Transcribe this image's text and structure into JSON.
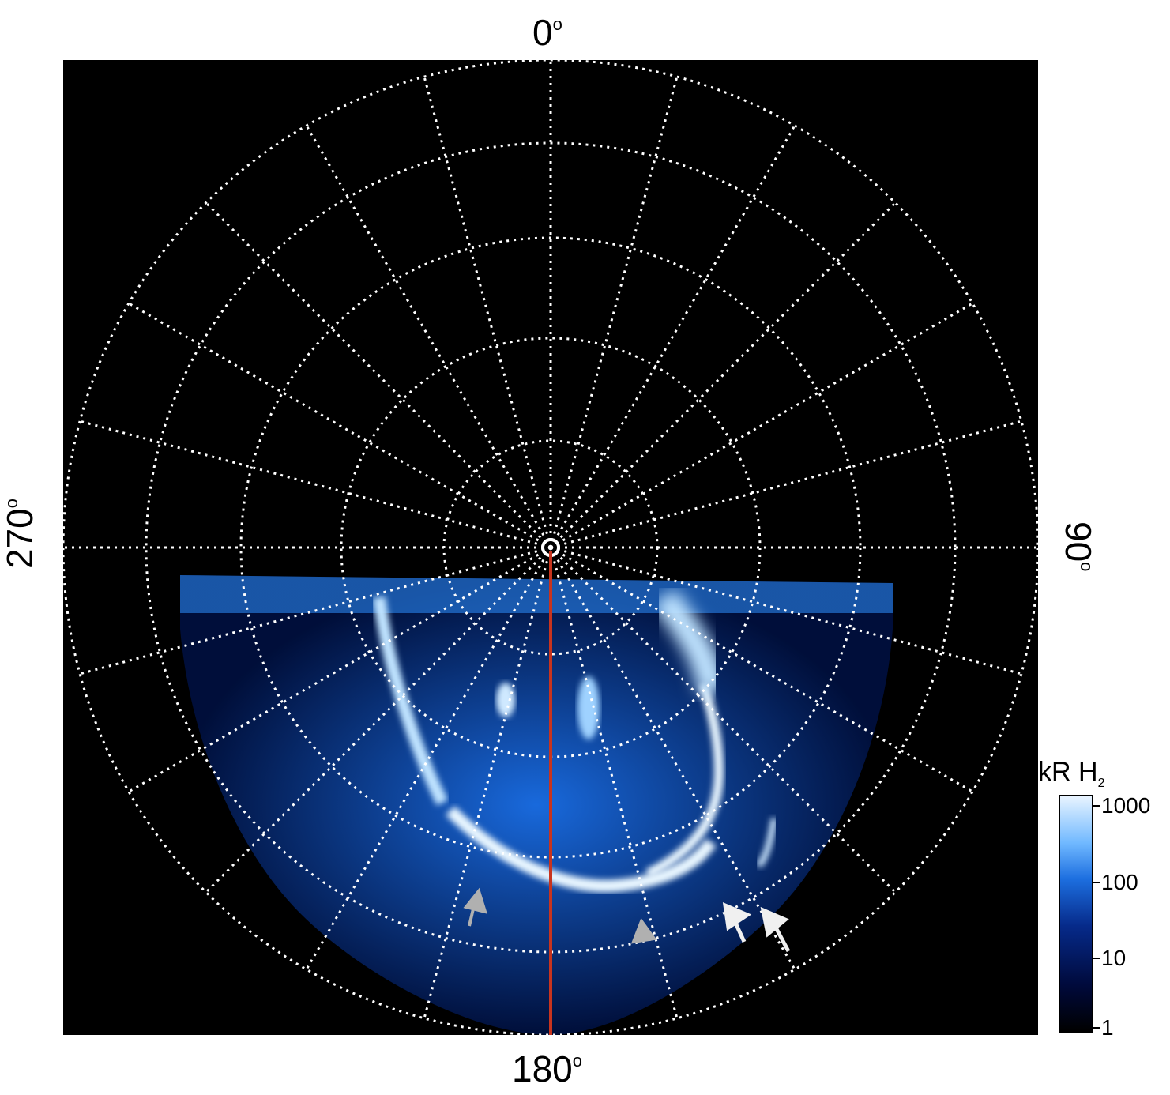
{
  "labels": {
    "top": "0",
    "bottom": "180",
    "left": "270",
    "right": "90",
    "degree": "o"
  },
  "colorbar": {
    "title_main": "kR H",
    "title_sub": "2",
    "ticks": [
      "1000",
      "100",
      "10",
      "1"
    ]
  },
  "annotations": {
    "grey_arrows": 2,
    "white_arrows": 2,
    "meridian_color": "#c8341e"
  }
}
